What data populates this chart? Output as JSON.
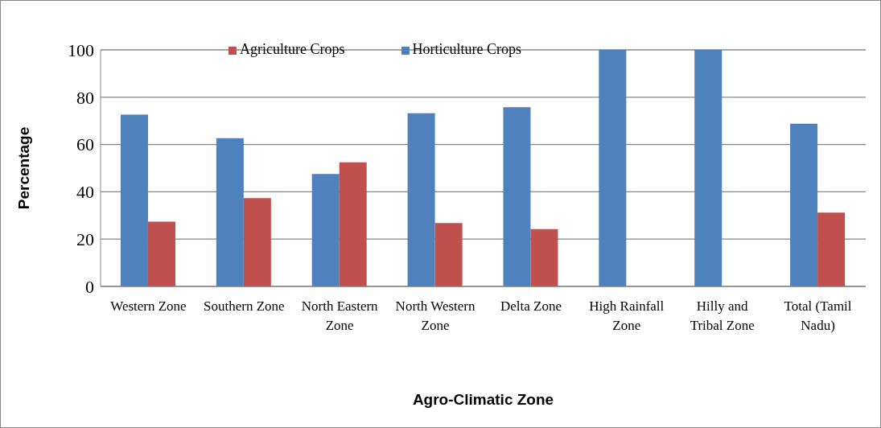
{
  "chart_data": {
    "type": "bar",
    "xlabel": "Agro-Climatic Zone",
    "ylabel": "Percentage",
    "categories": [
      "Western Zone",
      "Southern Zone",
      "North Eastern Zone",
      "North Western Zone",
      "Delta Zone",
      "High Rainfall Zone",
      "Hilly and Tribal Zone",
      "Total (Tamil Nadu)"
    ],
    "series": [
      {
        "name": "Horticulture Crops",
        "color": "#4f81bd",
        "values": [
          72.6,
          62.7,
          47.5,
          73.2,
          75.8,
          100,
          100,
          68.8
        ]
      },
      {
        "name": "Agriculture Crops",
        "color": "#c0504d",
        "values": [
          27.4,
          37.3,
          52.5,
          26.8,
          24.2,
          0,
          0,
          31.2
        ]
      }
    ],
    "ylim": [
      0,
      100
    ],
    "yticks": [
      0,
      20,
      40,
      60,
      80,
      100
    ],
    "grid": "y",
    "legend": "top"
  }
}
